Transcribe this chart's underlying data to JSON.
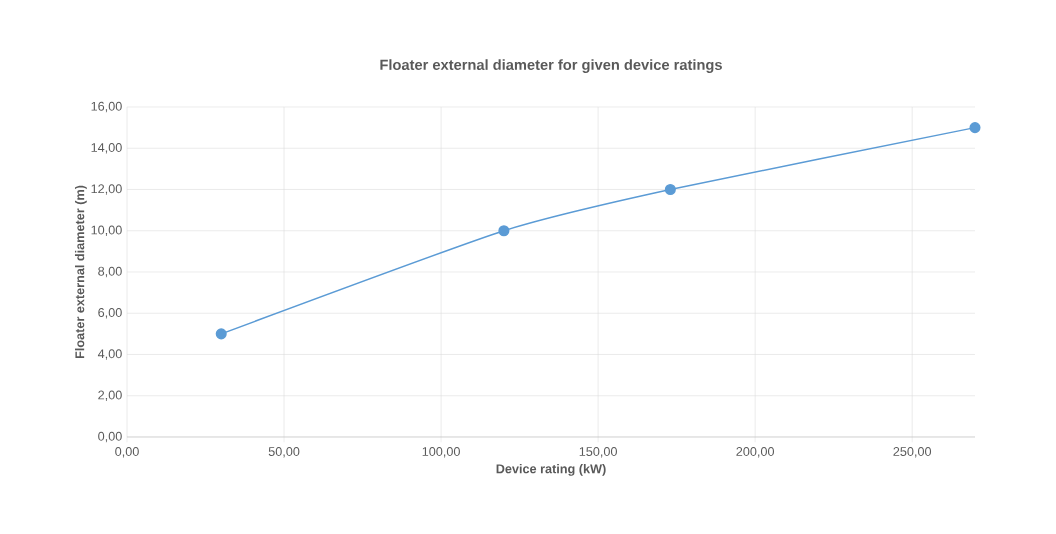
{
  "chart_data": {
    "type": "line",
    "title": "Floater external diameter for given device ratings",
    "xlabel": "Device rating (kW)",
    "ylabel": "Floater external diameter (m)",
    "x": [
      30,
      120,
      173,
      270
    ],
    "series": [
      {
        "color": "#5b9bd5",
        "values": [
          5,
          10,
          12,
          15
        ]
      }
    ],
    "xlim": [
      0,
      270
    ],
    "ylim": [
      0,
      16
    ],
    "xticks": [
      {
        "value": 0,
        "label": "0,00"
      },
      {
        "value": 50,
        "label": "50,00"
      },
      {
        "value": 100,
        "label": "100,00"
      },
      {
        "value": 150,
        "label": "150,00"
      },
      {
        "value": 200,
        "label": "200,00"
      },
      {
        "value": 250,
        "label": "250,00"
      }
    ],
    "yticks": [
      {
        "value": 0,
        "label": "0,00"
      },
      {
        "value": 2,
        "label": "2,00"
      },
      {
        "value": 4,
        "label": "4,00"
      },
      {
        "value": 6,
        "label": "6,00"
      },
      {
        "value": 8,
        "label": "8,00"
      },
      {
        "value": 10,
        "label": "10,00"
      },
      {
        "value": 12,
        "label": "12,00"
      },
      {
        "value": 14,
        "label": "14,00"
      },
      {
        "value": 16,
        "label": "16,00"
      }
    ],
    "grid": true,
    "marker": "circle",
    "line_style": "solid"
  }
}
